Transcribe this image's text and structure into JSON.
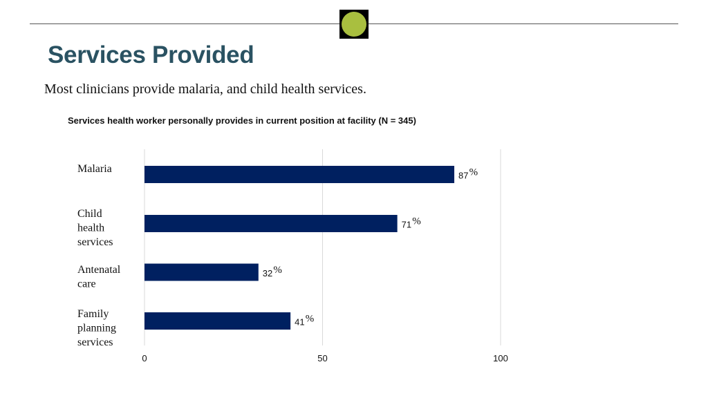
{
  "slide": {
    "title": "Services Provided",
    "subtitle": "Most clinicians provide malaria, and child health services."
  },
  "colors": {
    "bar": "#002060",
    "title": "#2a5262",
    "emblem_fill": "#a9bf3f",
    "grid": "#d9d9d9"
  },
  "chart_data": {
    "type": "bar",
    "orientation": "horizontal",
    "title": "Services health worker personally provides in current position at facility (N = 345)",
    "categories": [
      [
        "Malaria"
      ],
      [
        "Child",
        "health",
        "services"
      ],
      [
        "Antenatal",
        "care"
      ],
      [
        "Family",
        "planning",
        "services"
      ]
    ],
    "category_names": [
      "Malaria",
      "Child health services",
      "Antenatal care",
      "Family planning services"
    ],
    "values": [
      87,
      71,
      32,
      41
    ],
    "value_labels": [
      "87",
      "71",
      "32",
      "41"
    ],
    "value_suffix": "%",
    "xlim": [
      0,
      100
    ],
    "xticks": [
      0,
      50,
      100
    ],
    "xtick_labels": [
      "0",
      "50",
      "100"
    ],
    "grid": true,
    "xlabel": "",
    "ylabel": ""
  }
}
